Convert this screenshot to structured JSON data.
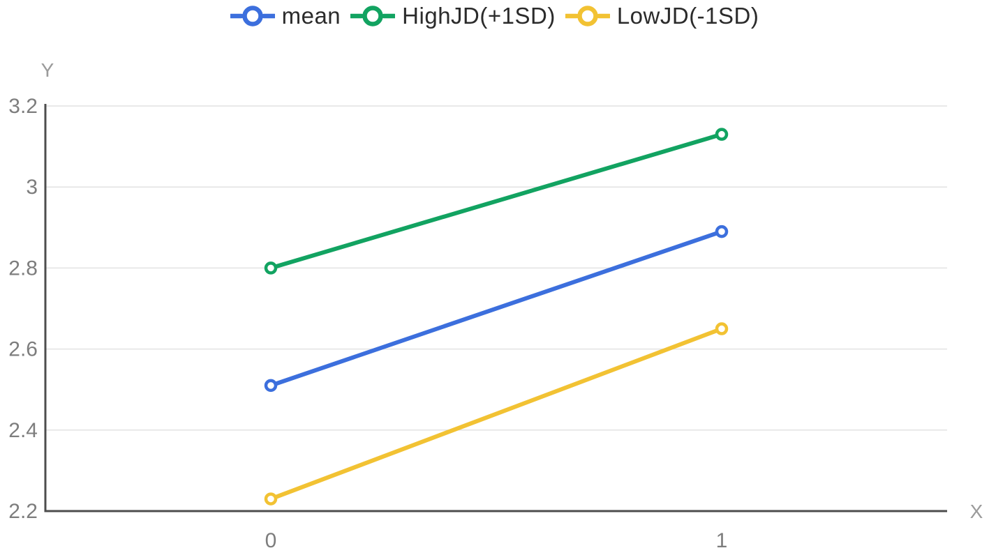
{
  "chart_data": {
    "type": "line",
    "categories": [
      "0",
      "1"
    ],
    "series": [
      {
        "name": "mean",
        "color": "#3c6fdd",
        "values": [
          2.51,
          2.89
        ]
      },
      {
        "name": "HighJD(+1SD)",
        "color": "#12a361",
        "values": [
          2.8,
          3.13
        ]
      },
      {
        "name": "LowJD(-1SD)",
        "color": "#f2c233",
        "values": [
          2.23,
          2.65
        ]
      }
    ],
    "title": "",
    "xlabel": "X",
    "ylabel": "Y",
    "ylim": [
      2.2,
      3.2
    ],
    "yticks": [
      2.2,
      2.4,
      2.6,
      2.8,
      3.0,
      3.2
    ],
    "ytick_labels": [
      "2.2",
      "2.4",
      "2.6",
      "2.8",
      "3",
      "3.2"
    ],
    "xtick_labels": [
      "0",
      "1"
    ],
    "grid": true,
    "legend_position": "top",
    "marker": "open-circle",
    "colors": {
      "axis": "#4d4d4d",
      "gridline": "#e2e2e2",
      "tick_label": "#7d7d7d",
      "axis_title": "#9b9b9b",
      "legend_text": "#2b2b2b",
      "background": "#ffffff"
    }
  }
}
